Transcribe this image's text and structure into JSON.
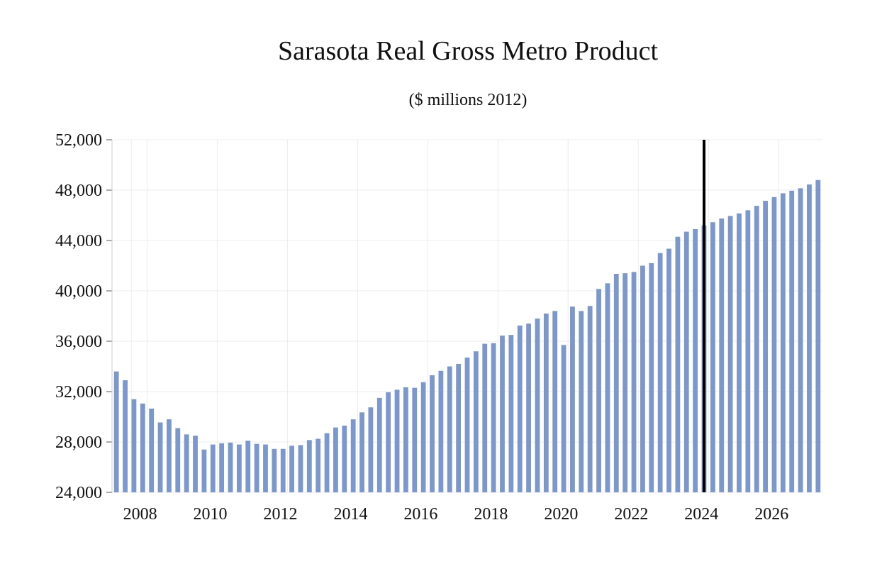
{
  "chart_data": {
    "type": "bar",
    "title": "Sarasota Real Gross Metro Product",
    "subtitle": "($ millions 2012)",
    "xlabel": "",
    "ylabel": "",
    "ylim": [
      24000,
      52000
    ],
    "y_ticks": [
      24000,
      28000,
      32000,
      36000,
      40000,
      44000,
      48000,
      52000
    ],
    "y_tick_labels": [
      "24,000",
      "28,000",
      "32,000",
      "36,000",
      "40,000",
      "44,000",
      "48,000",
      "52,000"
    ],
    "x_tick_labels": [
      "2008",
      "2010",
      "2012",
      "2014",
      "2016",
      "2018",
      "2020",
      "2022",
      "2024",
      "2026"
    ],
    "x_tick_years": [
      2008,
      2010,
      2012,
      2014,
      2016,
      2018,
      2020,
      2022,
      2024,
      2026
    ],
    "start_year": 2007,
    "start_quarter": 1,
    "periods_per_year": 4,
    "forecast_marker": {
      "year": 2024,
      "quarter": 1,
      "color": "#000000"
    },
    "bar_color": "#7b97cc",
    "grid": true,
    "series": [
      {
        "name": "Real Gross Metro Product",
        "values": [
          33600,
          32900,
          31400,
          31050,
          30650,
          29550,
          29800,
          29100,
          28600,
          28500,
          27400,
          27800,
          27900,
          27950,
          27800,
          28100,
          27850,
          27800,
          27450,
          27450,
          27700,
          27750,
          28150,
          28250,
          28700,
          29150,
          29300,
          29800,
          30350,
          30750,
          31500,
          31950,
          32150,
          32350,
          32300,
          32750,
          33300,
          33650,
          34000,
          34200,
          34700,
          35200,
          35800,
          35850,
          36450,
          36500,
          37250,
          37400,
          37800,
          38200,
          38400,
          35700,
          38750,
          38400,
          38800,
          40150,
          40600,
          41350,
          41400,
          41500,
          42000,
          42200,
          43000,
          43350,
          44300,
          44700,
          44900,
          45200,
          45450,
          45750,
          45950,
          46150,
          46400,
          46750,
          47150,
          47450,
          47750,
          47950,
          48150,
          48450,
          48800
        ]
      }
    ]
  }
}
